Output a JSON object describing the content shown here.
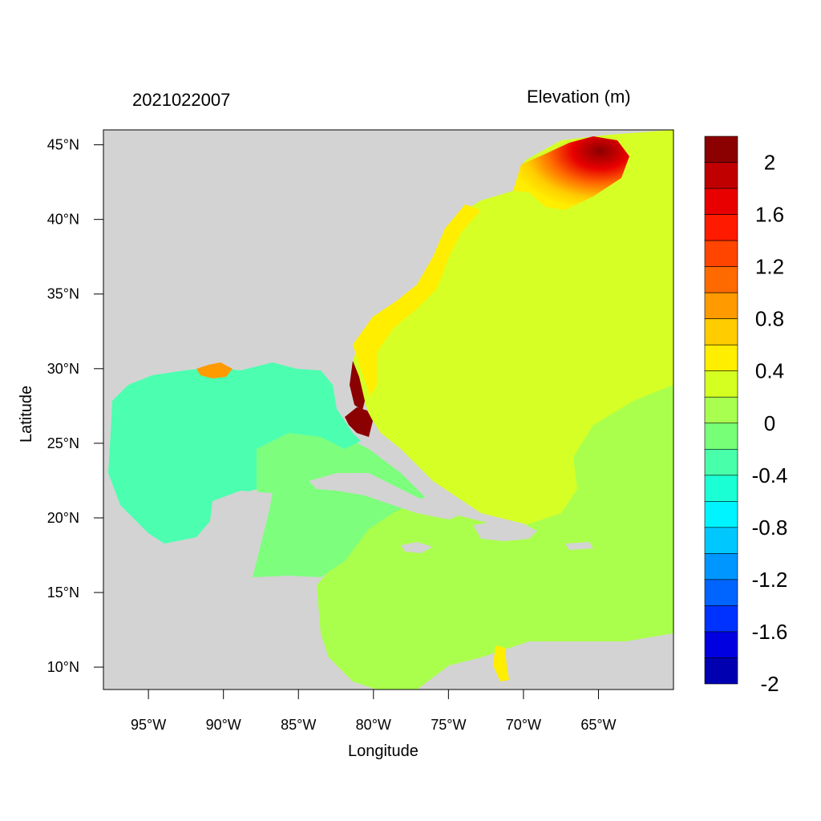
{
  "header": {
    "timestamp": "2021022007",
    "variable": "Elevation (m)"
  },
  "axes": {
    "xlabel": "Longitude",
    "ylabel": "Latitude",
    "x_ticks": [
      "95°W",
      "90°W",
      "85°W",
      "80°W",
      "75°W",
      "70°W",
      "65°W"
    ],
    "x_tick_values": [
      -95,
      -90,
      -85,
      -80,
      -75,
      -70,
      -65
    ],
    "y_ticks": [
      "10°N",
      "15°N",
      "20°N",
      "25°N",
      "30°N",
      "35°N",
      "40°N",
      "45°N"
    ],
    "y_tick_values": [
      10,
      15,
      20,
      25,
      30,
      35,
      40,
      45
    ],
    "xlim": [
      -98,
      -60
    ],
    "ylim": [
      8.5,
      46
    ]
  },
  "colorbar": {
    "labels": [
      "2",
      "1.6",
      "1.2",
      "0.8",
      "0.4",
      "0",
      "-0.4",
      "-0.8",
      "-1.2",
      "-1.6",
      "-2"
    ],
    "colors": [
      "#8b0000",
      "#c00000",
      "#e80000",
      "#ff1a00",
      "#ff4500",
      "#ff6a00",
      "#ff9a00",
      "#ffcc00",
      "#ffee00",
      "#d4ff20",
      "#a8ff50",
      "#78ff78",
      "#48ffaa",
      "#1affd4",
      "#00f4ff",
      "#00c8ff",
      "#0096ff",
      "#0064ff",
      "#0032ff",
      "#0000e0",
      "#0000b0"
    ]
  },
  "colors": {
    "land": "#d3d3d3",
    "gulf": "#4cffb0",
    "caribbean_west": "#7dff7d",
    "caribbean_east": "#aaff4c",
    "atlantic": "#d6ff26",
    "coast_warm": "#ffee00",
    "coast_orange": "#ff9a00",
    "coast_red": "#ff2a00",
    "coast_dark": "#8b0000"
  }
}
